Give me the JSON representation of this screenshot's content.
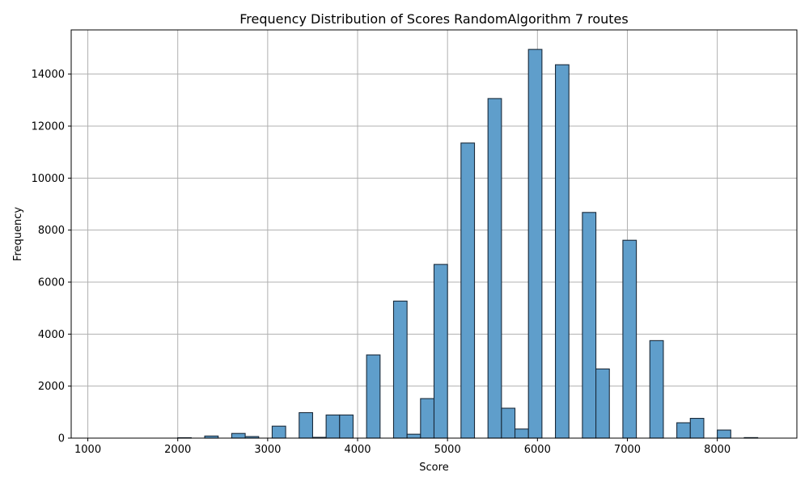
{
  "chart_data": {
    "type": "bar",
    "title": "Frequency Distribution of Scores RandomAlgorithm 7 routes",
    "xlabel": "Score",
    "ylabel": "Frequency",
    "xlim": [
      815,
      8885
    ],
    "ylim": [
      0,
      15700
    ],
    "xticks": [
      1000,
      2000,
      3000,
      4000,
      5000,
      6000,
      7000,
      8000
    ],
    "yticks": [
      0,
      2000,
      4000,
      6000,
      8000,
      10000,
      12000,
      14000
    ],
    "grid": true,
    "bin_width": 150,
    "bar_color": "#5f9ecb",
    "edge_color": "#1a2a3a",
    "bins": [
      {
        "x": 2075,
        "value": 15
      },
      {
        "x": 2375,
        "value": 80
      },
      {
        "x": 2675,
        "value": 180
      },
      {
        "x": 2825,
        "value": 60
      },
      {
        "x": 3125,
        "value": 460
      },
      {
        "x": 3425,
        "value": 980
      },
      {
        "x": 3575,
        "value": 30
      },
      {
        "x": 3725,
        "value": 890
      },
      {
        "x": 3875,
        "value": 890
      },
      {
        "x": 4175,
        "value": 3200
      },
      {
        "x": 4475,
        "value": 5270
      },
      {
        "x": 4625,
        "value": 150
      },
      {
        "x": 4775,
        "value": 1520
      },
      {
        "x": 4925,
        "value": 6680
      },
      {
        "x": 5225,
        "value": 11350
      },
      {
        "x": 5525,
        "value": 13060
      },
      {
        "x": 5675,
        "value": 1150
      },
      {
        "x": 5825,
        "value": 350
      },
      {
        "x": 5975,
        "value": 14950
      },
      {
        "x": 6275,
        "value": 14360
      },
      {
        "x": 6575,
        "value": 8680
      },
      {
        "x": 6725,
        "value": 2660
      },
      {
        "x": 7025,
        "value": 7610
      },
      {
        "x": 7325,
        "value": 3750
      },
      {
        "x": 7625,
        "value": 590
      },
      {
        "x": 7775,
        "value": 760
      },
      {
        "x": 8075,
        "value": 310
      },
      {
        "x": 8375,
        "value": 20
      }
    ]
  }
}
